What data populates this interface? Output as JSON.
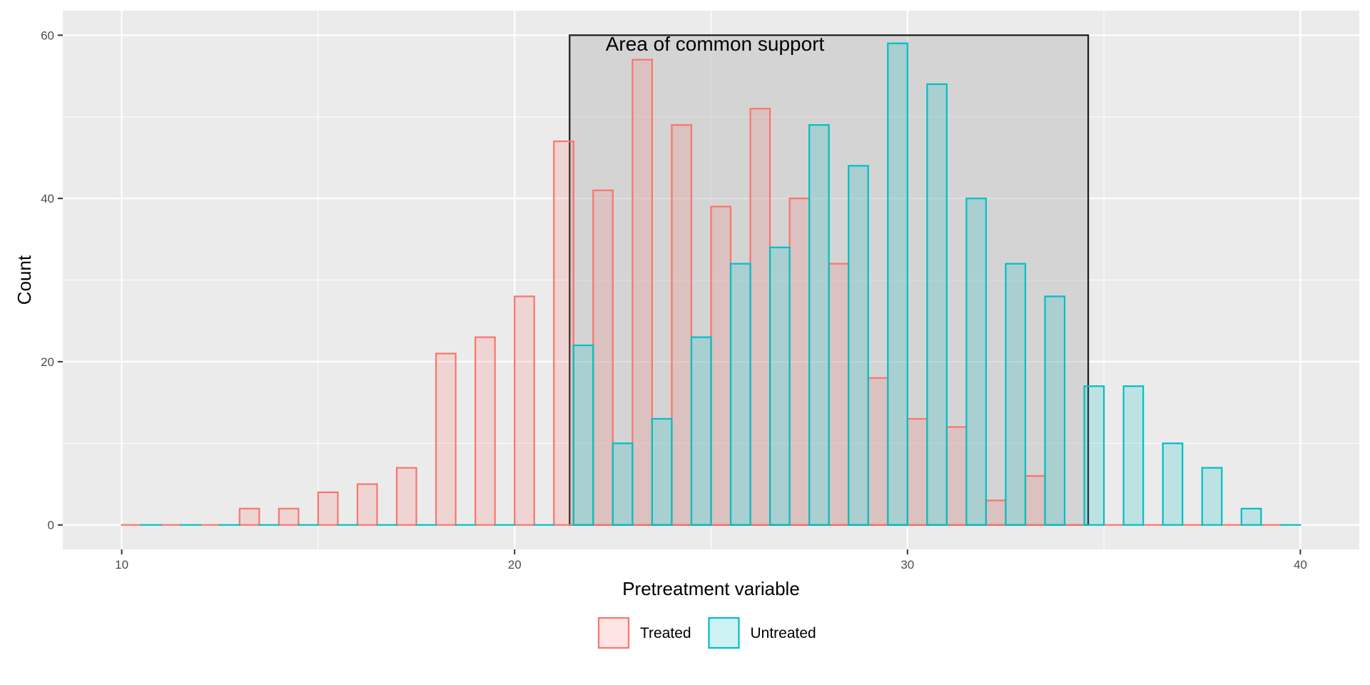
{
  "chart_data": {
    "type": "bar",
    "title": "",
    "xlabel": "Pretreatment variable",
    "ylabel": "Count",
    "xlim": [
      8.5,
      41.5
    ],
    "ylim": [
      -3,
      63
    ],
    "x_ticks": [
      10,
      20,
      30,
      40
    ],
    "y_ticks": [
      0,
      20,
      40,
      60
    ],
    "grid": true,
    "legend_position": "bottom",
    "annotation": {
      "label": "Area of common support",
      "x_range": [
        21.4,
        34.6
      ],
      "y_range": [
        0,
        60
      ],
      "fill": "#bebebe",
      "border": "#1a1a1a"
    },
    "series": [
      {
        "name": "Treated",
        "color": "#F8766D",
        "x": [
          10.5,
          11.5,
          12.5,
          13.5,
          14.5,
          15.5,
          16.5,
          17.5,
          18.5,
          19.5,
          20.5,
          21.5,
          22.5,
          23.5,
          24.5,
          25.5,
          26.5,
          27.5,
          28.5,
          29.5,
          30.5,
          31.5,
          32.5,
          33.5,
          34.5,
          35.5,
          36.5,
          37.5,
          38.5,
          39.5
        ],
        "values": [
          0,
          0,
          0,
          2,
          2,
          4,
          5,
          7,
          21,
          23,
          28,
          47,
          41,
          57,
          49,
          39,
          51,
          40,
          32,
          18,
          13,
          12,
          3,
          6,
          0,
          0,
          0,
          0,
          0,
          0
        ]
      },
      {
        "name": "Untreated",
        "color": "#00BFC4",
        "x": [
          10.5,
          11.5,
          12.5,
          13.5,
          14.5,
          15.5,
          16.5,
          17.5,
          18.5,
          19.5,
          20.5,
          21.5,
          22.5,
          23.5,
          24.5,
          25.5,
          26.5,
          27.5,
          28.5,
          29.5,
          30.5,
          31.5,
          32.5,
          33.5,
          34.5,
          35.5,
          36.5,
          37.5,
          38.5,
          39.5
        ],
        "values": [
          0,
          0,
          0,
          0,
          0,
          0,
          0,
          0,
          0,
          0,
          0,
          22,
          10,
          13,
          23,
          32,
          34,
          49,
          44,
          59,
          54,
          40,
          32,
          28,
          17,
          17,
          10,
          7,
          2,
          0
        ]
      }
    ]
  }
}
